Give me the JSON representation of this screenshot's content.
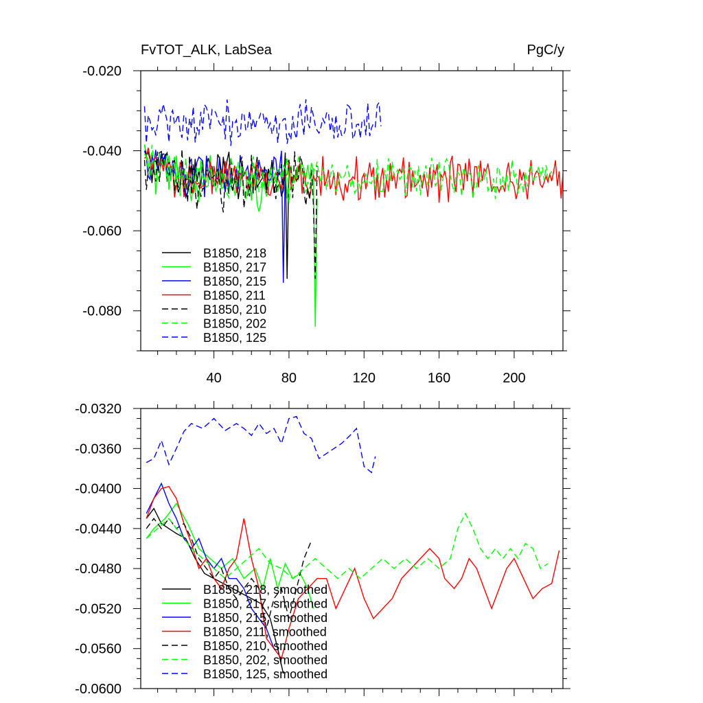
{
  "header": {
    "title": "FvTOT_ALK, LabSea",
    "units": "PgC/y"
  },
  "chart_data": [
    {
      "type": "line",
      "title": "FvTOT_ALK, LabSea",
      "units": "PgC/y",
      "xlabel": "",
      "ylabel": "",
      "xlim": [
        1,
        226
      ],
      "ylim": [
        -0.09,
        -0.02
      ],
      "xticks": [
        40,
        80,
        120,
        160,
        200
      ],
      "yticks": [
        -0.02,
        -0.04,
        -0.06,
        -0.08
      ],
      "ytick_labels": [
        "-0.020",
        "-0.040",
        "-0.060",
        "-0.080"
      ],
      "legend": {
        "position": "bottom-left"
      },
      "series": [
        {
          "name": "B1850, 218",
          "color": "#000000",
          "dash": "solid",
          "n": 78,
          "mean": -0.046,
          "amp": 0.0045,
          "tail": -0.072
        },
        {
          "name": "B1850, 217",
          "color": "#00ff00",
          "dash": "solid",
          "n": 93,
          "mean": -0.048,
          "amp": 0.005,
          "tail": -0.084
        },
        {
          "name": "B1850, 215",
          "color": "#0000ff",
          "dash": "solid",
          "n": 76,
          "mean": -0.046,
          "amp": 0.0045,
          "tail": -0.073
        },
        {
          "name": "B1850, 211",
          "color": "#ff0000",
          "dash": "solid",
          "n": 226,
          "mean": -0.047,
          "amp": 0.004,
          "tail": -0.044
        },
        {
          "name": "B1850, 210",
          "color": "#000000",
          "dash": "dashed",
          "n": 93,
          "mean": -0.047,
          "amp": 0.0055,
          "tail": -0.072
        },
        {
          "name": "B1850, 202",
          "color": "#00ff00",
          "dash": "dashed",
          "n": 218,
          "mean": -0.047,
          "amp": 0.004,
          "tail": -0.046
        },
        {
          "name": "B1850, 125",
          "color": "#0000ff",
          "dash": "dashed",
          "n": 127,
          "mean": -0.033,
          "amp": 0.004,
          "tail": -0.028
        }
      ]
    },
    {
      "type": "line",
      "title": "",
      "xlabel": "",
      "ylabel": "",
      "xlim": [
        1,
        226
      ],
      "ylim": [
        -0.06,
        -0.032
      ],
      "xticks": [
        40,
        80,
        120,
        160,
        200
      ],
      "yticks": [
        -0.032,
        -0.036,
        -0.04,
        -0.044,
        -0.048,
        -0.052,
        -0.056,
        -0.06
      ],
      "ytick_labels": [
        "-0.0320",
        "-0.0360",
        "-0.0400",
        "-0.0440",
        "-0.0480",
        "-0.0520",
        "-0.0560",
        "-0.0600"
      ],
      "legend": {
        "position": "bottom-left"
      },
      "series": [
        {
          "name": "B1850, 218, smoothed",
          "color": "#000000",
          "dash": "solid",
          "points": [
            [
              4,
              -0.043
            ],
            [
              8,
              -0.042
            ],
            [
              12,
              -0.0435
            ],
            [
              16,
              -0.044
            ],
            [
              20,
              -0.0445
            ],
            [
              25,
              -0.045
            ],
            [
              30,
              -0.047
            ],
            [
              35,
              -0.0485
            ],
            [
              40,
              -0.049
            ],
            [
              45,
              -0.0495
            ],
            [
              50,
              -0.05
            ],
            [
              55,
              -0.0505
            ],
            [
              60,
              -0.051
            ],
            [
              65,
              -0.0515
            ],
            [
              70,
              -0.053
            ],
            [
              74,
              -0.056
            ],
            [
              77,
              -0.0585
            ]
          ]
        },
        {
          "name": "B1850, 217, smoothed",
          "color": "#00ff00",
          "dash": "solid",
          "points": [
            [
              4,
              -0.045
            ],
            [
              8,
              -0.044
            ],
            [
              14,
              -0.043
            ],
            [
              20,
              -0.0415
            ],
            [
              26,
              -0.0435
            ],
            [
              32,
              -0.046
            ],
            [
              38,
              -0.047
            ],
            [
              44,
              -0.048
            ],
            [
              50,
              -0.047
            ],
            [
              56,
              -0.049
            ],
            [
              62,
              -0.048
            ],
            [
              66,
              -0.05
            ],
            [
              70,
              -0.047
            ],
            [
              74,
              -0.05
            ],
            [
              78,
              -0.0475
            ],
            [
              82,
              -0.049
            ],
            [
              86,
              -0.0485
            ],
            [
              90,
              -0.05
            ],
            [
              93,
              -0.052
            ]
          ]
        },
        {
          "name": "B1850, 215, smoothed",
          "color": "#0000ff",
          "dash": "solid",
          "points": [
            [
              4,
              -0.0425
            ],
            [
              8,
              -0.041
            ],
            [
              12,
              -0.0395
            ],
            [
              16,
              -0.0415
            ],
            [
              20,
              -0.043
            ],
            [
              24,
              -0.045
            ],
            [
              28,
              -0.046
            ],
            [
              32,
              -0.045
            ],
            [
              36,
              -0.047
            ],
            [
              40,
              -0.048
            ],
            [
              44,
              -0.047
            ],
            [
              48,
              -0.049
            ],
            [
              52,
              -0.049
            ],
            [
              56,
              -0.05
            ],
            [
              60,
              -0.052
            ],
            [
              64,
              -0.053
            ],
            [
              68,
              -0.054
            ],
            [
              72,
              -0.056
            ],
            [
              76,
              -0.057
            ]
          ]
        },
        {
          "name": "B1850, 211, smoothed",
          "color": "#ff0000",
          "dash": "solid",
          "points": [
            [
              4,
              -0.043
            ],
            [
              8,
              -0.041
            ],
            [
              12,
              -0.04
            ],
            [
              16,
              -0.0398
            ],
            [
              20,
              -0.041
            ],
            [
              24,
              -0.0435
            ],
            [
              28,
              -0.0455
            ],
            [
              32,
              -0.048
            ],
            [
              36,
              -0.047
            ],
            [
              40,
              -0.049
            ],
            [
              44,
              -0.05
            ],
            [
              48,
              -0.048
            ],
            [
              52,
              -0.047
            ],
            [
              56,
              -0.043
            ],
            [
              60,
              -0.047
            ],
            [
              64,
              -0.05
            ],
            [
              68,
              -0.055
            ],
            [
              72,
              -0.056
            ],
            [
              76,
              -0.057
            ],
            [
              80,
              -0.054
            ],
            [
              85,
              -0.051
            ],
            [
              90,
              -0.05
            ],
            [
              95,
              -0.049
            ],
            [
              100,
              -0.049
            ],
            [
              105,
              -0.052
            ],
            [
              110,
              -0.05
            ],
            [
              115,
              -0.048
            ],
            [
              120,
              -0.051
            ],
            [
              125,
              -0.053
            ],
            [
              130,
              -0.052
            ],
            [
              135,
              -0.051
            ],
            [
              140,
              -0.049
            ],
            [
              145,
              -0.048
            ],
            [
              150,
              -0.047
            ],
            [
              155,
              -0.046
            ],
            [
              160,
              -0.047
            ],
            [
              163,
              -0.049
            ],
            [
              168,
              -0.05
            ],
            [
              172,
              -0.049
            ],
            [
              176,
              -0.047
            ],
            [
              180,
              -0.048
            ],
            [
              184,
              -0.05
            ],
            [
              188,
              -0.052
            ],
            [
              192,
              -0.05
            ],
            [
              196,
              -0.048
            ],
            [
              200,
              -0.047
            ],
            [
              205,
              -0.049
            ],
            [
              210,
              -0.051
            ],
            [
              215,
              -0.05
            ],
            [
              220,
              -0.0495
            ],
            [
              224,
              -0.0462
            ]
          ]
        },
        {
          "name": "B1850, 210, smoothed",
          "color": "#000000",
          "dash": "dashed",
          "points": [
            [
              4,
              -0.044
            ],
            [
              8,
              -0.043
            ],
            [
              12,
              -0.044
            ],
            [
              16,
              -0.043
            ],
            [
              20,
              -0.044
            ],
            [
              24,
              -0.0435
            ],
            [
              28,
              -0.045
            ],
            [
              32,
              -0.047
            ],
            [
              36,
              -0.048
            ],
            [
              40,
              -0.049
            ],
            [
              44,
              -0.048
            ],
            [
              48,
              -0.05
            ],
            [
              52,
              -0.051
            ],
            [
              56,
              -0.05
            ],
            [
              60,
              -0.049
            ],
            [
              64,
              -0.05
            ],
            [
              68,
              -0.054
            ],
            [
              72,
              -0.051
            ],
            [
              76,
              -0.05
            ],
            [
              80,
              -0.053
            ],
            [
              84,
              -0.05
            ],
            [
              88,
              -0.047
            ],
            [
              92,
              -0.0452
            ]
          ]
        },
        {
          "name": "B1850, 202, smoothed",
          "color": "#00ff00",
          "dash": "dashed",
          "points": [
            [
              4,
              -0.045
            ],
            [
              10,
              -0.044
            ],
            [
              16,
              -0.043
            ],
            [
              22,
              -0.0445
            ],
            [
              28,
              -0.046
            ],
            [
              34,
              -0.047
            ],
            [
              40,
              -0.048
            ],
            [
              46,
              -0.049
            ],
            [
              52,
              -0.048
            ],
            [
              58,
              -0.047
            ],
            [
              64,
              -0.046
            ],
            [
              70,
              -0.0475
            ],
            [
              76,
              -0.048
            ],
            [
              82,
              -0.049
            ],
            [
              88,
              -0.048
            ],
            [
              94,
              -0.047
            ],
            [
              100,
              -0.048
            ],
            [
              106,
              -0.049
            ],
            [
              112,
              -0.048
            ],
            [
              118,
              -0.049
            ],
            [
              124,
              -0.048
            ],
            [
              130,
              -0.047
            ],
            [
              136,
              -0.048
            ],
            [
              142,
              -0.047
            ],
            [
              148,
              -0.048
            ],
            [
              154,
              -0.047
            ],
            [
              160,
              -0.048
            ],
            [
              166,
              -0.047
            ],
            [
              170,
              -0.044
            ],
            [
              174,
              -0.0425
            ],
            [
              178,
              -0.044
            ],
            [
              182,
              -0.046
            ],
            [
              186,
              -0.047
            ],
            [
              190,
              -0.046
            ],
            [
              194,
              -0.047
            ],
            [
              198,
              -0.046
            ],
            [
              202,
              -0.047
            ],
            [
              206,
              -0.0455
            ],
            [
              210,
              -0.046
            ],
            [
              214,
              -0.048
            ],
            [
              218,
              -0.0475
            ]
          ]
        },
        {
          "name": "B1850, 125, smoothed",
          "color": "#0000ff",
          "dash": "dashed",
          "points": [
            [
              4,
              -0.0374
            ],
            [
              8,
              -0.037
            ],
            [
              12,
              -0.0352
            ],
            [
              16,
              -0.0376
            ],
            [
              20,
              -0.036
            ],
            [
              24,
              -0.0343
            ],
            [
              28,
              -0.0335
            ],
            [
              34,
              -0.034
            ],
            [
              40,
              -0.033
            ],
            [
              46,
              -0.0342
            ],
            [
              52,
              -0.0335
            ],
            [
              56,
              -0.034
            ],
            [
              60,
              -0.0347
            ],
            [
              64,
              -0.0335
            ],
            [
              68,
              -0.0345
            ],
            [
              72,
              -0.034
            ],
            [
              76,
              -0.0355
            ],
            [
              80,
              -0.033
            ],
            [
              84,
              -0.0328
            ],
            [
              88,
              -0.0345
            ],
            [
              92,
              -0.035
            ],
            [
              96,
              -0.037
            ],
            [
              100,
              -0.0365
            ],
            [
              104,
              -0.036
            ],
            [
              108,
              -0.0355
            ],
            [
              112,
              -0.0348
            ],
            [
              116,
              -0.034
            ],
            [
              120,
              -0.0378
            ],
            [
              124,
              -0.0384
            ],
            [
              126,
              -0.0368
            ]
          ]
        }
      ]
    }
  ]
}
